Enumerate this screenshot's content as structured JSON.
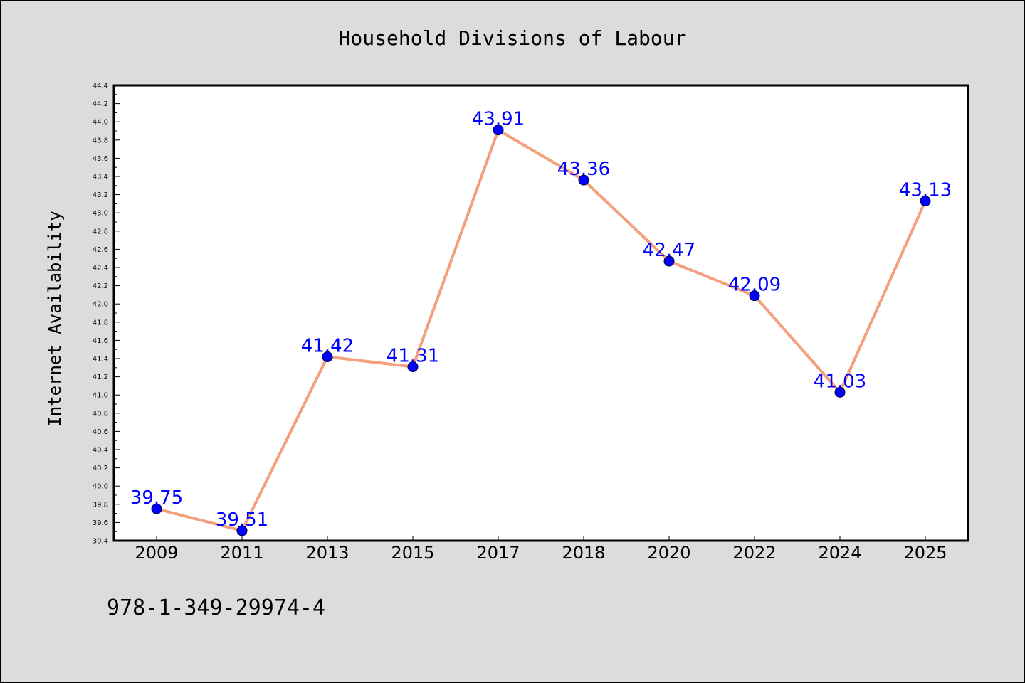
{
  "chart_data": {
    "type": "line",
    "title": "Household Divisions of Labour",
    "xlabel": "",
    "ylabel": "Internet Availability",
    "categories": [
      "2009",
      "2011",
      "2013",
      "2015",
      "2017",
      "2018",
      "2020",
      "2022",
      "2024",
      "2025"
    ],
    "series": [
      {
        "values": [
          39.75,
          39.51,
          41.42,
          41.31,
          43.91,
          43.36,
          42.47,
          42.09,
          41.03,
          43.13
        ],
        "data_labels": [
          "39.75",
          "39.51",
          "41.42",
          "41.31",
          "43.91",
          "43.36",
          "42.47",
          "42.09",
          "41.03",
          "43.13"
        ]
      }
    ],
    "ylim": [
      39.4,
      44.4
    ],
    "yticks": [
      "39.4",
      "39.6",
      "39.8",
      "40.0",
      "40.2",
      "40.4",
      "40.6",
      "40.8",
      "41.0",
      "41.2",
      "41.4",
      "41.6",
      "41.8",
      "42.0",
      "42.2",
      "42.4",
      "42.6",
      "42.8",
      "43.0",
      "43.2",
      "43.4",
      "43.6",
      "43.8",
      "44.0",
      "44.2",
      "44.4"
    ],
    "grid": false,
    "legend": "none",
    "colors": {
      "line": "#f4a07c",
      "marker": "#0000ff",
      "data_label": "#0000ff",
      "background": "#dcdcdc",
      "plot_background": "#ffffff"
    }
  },
  "footer": {
    "identifier": "978-1-349-29974-4"
  }
}
